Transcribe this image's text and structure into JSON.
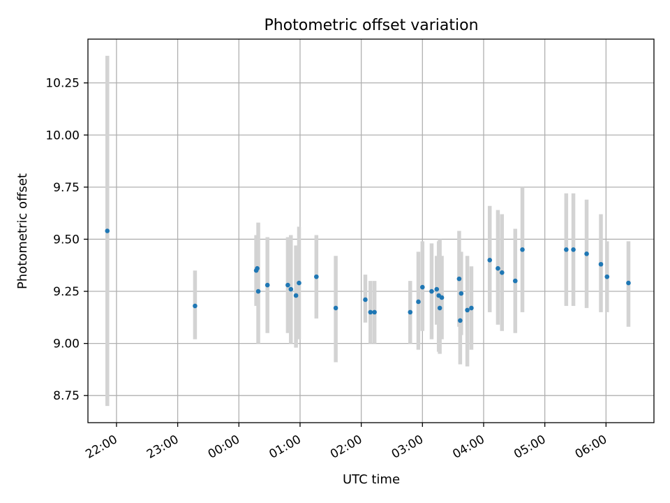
{
  "chart_data": {
    "type": "scatter",
    "title": "Photometric offset variation",
    "xlabel": "UTC time",
    "ylabel": "Photometric offset",
    "grid": true,
    "xlim": [
      "21:32",
      "06:47"
    ],
    "ylim": [
      8.62,
      10.46
    ],
    "x_ticks": [
      "22:00",
      "23:00",
      "00:00",
      "01:00",
      "02:00",
      "03:00",
      "04:00",
      "05:00",
      "06:00"
    ],
    "y_ticks": [
      "8.75",
      "9.00",
      "9.25",
      "9.50",
      "9.75",
      "10.00",
      "10.25"
    ],
    "colors": {
      "points": "#1f77b4",
      "errorbars": "#d3d3d3"
    },
    "points": [
      {
        "x": "21:51",
        "y": 9.54,
        "ylo": 8.7,
        "yhi": 10.38
      },
      {
        "x": "23:17",
        "y": 9.18,
        "ylo": 9.02,
        "yhi": 9.35
      },
      {
        "x": "00:17",
        "y": 9.35,
        "ylo": 9.18,
        "yhi": 9.52
      },
      {
        "x": "00:18",
        "y": 9.36,
        "ylo": 9.19,
        "yhi": 9.52
      },
      {
        "x": "00:19",
        "y": 9.25,
        "ylo": 9.0,
        "yhi": 9.58
      },
      {
        "x": "00:28",
        "y": 9.28,
        "ylo": 9.05,
        "yhi": 9.51
      },
      {
        "x": "00:48",
        "y": 9.28,
        "ylo": 9.05,
        "yhi": 9.51
      },
      {
        "x": "00:51",
        "y": 9.26,
        "ylo": 9.0,
        "yhi": 9.52
      },
      {
        "x": "00:56",
        "y": 9.23,
        "ylo": 8.98,
        "yhi": 9.47
      },
      {
        "x": "00:59",
        "y": 9.29,
        "ylo": 9.02,
        "yhi": 9.56
      },
      {
        "x": "01:16",
        "y": 9.32,
        "ylo": 9.12,
        "yhi": 9.52
      },
      {
        "x": "01:35",
        "y": 9.17,
        "ylo": 8.91,
        "yhi": 9.42
      },
      {
        "x": "02:04",
        "y": 9.21,
        "ylo": 9.1,
        "yhi": 9.33
      },
      {
        "x": "02:09",
        "y": 9.15,
        "ylo": 9.0,
        "yhi": 9.3
      },
      {
        "x": "02:13",
        "y": 9.15,
        "ylo": 9.0,
        "yhi": 9.3
      },
      {
        "x": "02:48",
        "y": 9.15,
        "ylo": 9.0,
        "yhi": 9.3
      },
      {
        "x": "02:56",
        "y": 9.2,
        "ylo": 8.97,
        "yhi": 9.44
      },
      {
        "x": "03:00",
        "y": 9.27,
        "ylo": 9.06,
        "yhi": 9.49
      },
      {
        "x": "03:09",
        "y": 9.25,
        "ylo": 9.02,
        "yhi": 9.48
      },
      {
        "x": "03:14",
        "y": 9.26,
        "ylo": 9.09,
        "yhi": 9.42
      },
      {
        "x": "03:16",
        "y": 9.23,
        "ylo": 8.96,
        "yhi": 9.49
      },
      {
        "x": "03:17",
        "y": 9.17,
        "ylo": 8.95,
        "yhi": 9.5
      },
      {
        "x": "03:19",
        "y": 9.22,
        "ylo": 9.02,
        "yhi": 9.42
      },
      {
        "x": "03:36",
        "y": 9.31,
        "ylo": 9.08,
        "yhi": 9.54
      },
      {
        "x": "03:37",
        "y": 9.11,
        "ylo": 8.9,
        "yhi": 9.33
      },
      {
        "x": "03:38",
        "y": 9.24,
        "ylo": 9.04,
        "yhi": 9.44
      },
      {
        "x": "03:44",
        "y": 9.16,
        "ylo": 8.89,
        "yhi": 9.42
      },
      {
        "x": "03:48",
        "y": 9.17,
        "ylo": 8.97,
        "yhi": 9.37
      },
      {
        "x": "04:06",
        "y": 9.4,
        "ylo": 9.15,
        "yhi": 9.66
      },
      {
        "x": "04:14",
        "y": 9.36,
        "ylo": 9.09,
        "yhi": 9.64
      },
      {
        "x": "04:18",
        "y": 9.34,
        "ylo": 9.06,
        "yhi": 9.62
      },
      {
        "x": "04:31",
        "y": 9.3,
        "ylo": 9.05,
        "yhi": 9.55
      },
      {
        "x": "04:38",
        "y": 9.45,
        "ylo": 9.15,
        "yhi": 9.75
      },
      {
        "x": "05:21",
        "y": 9.45,
        "ylo": 9.18,
        "yhi": 9.72
      },
      {
        "x": "05:28",
        "y": 9.45,
        "ylo": 9.18,
        "yhi": 9.72
      },
      {
        "x": "05:41",
        "y": 9.43,
        "ylo": 9.17,
        "yhi": 9.69
      },
      {
        "x": "05:55",
        "y": 9.38,
        "ylo": 9.15,
        "yhi": 9.62
      },
      {
        "x": "06:01",
        "y": 9.32,
        "ylo": 9.15,
        "yhi": 9.49
      },
      {
        "x": "06:22",
        "y": 9.29,
        "ylo": 9.08,
        "yhi": 9.49
      }
    ]
  }
}
